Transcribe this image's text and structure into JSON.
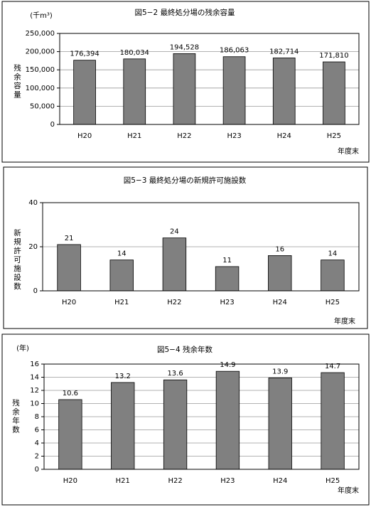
{
  "chart_data": [
    {
      "type": "bar",
      "title": "図5−2 最終処分場の残余容量",
      "unit": "(千m³)",
      "y_label": "残余容量",
      "x_label": "年度末",
      "categories": [
        "H20",
        "H21",
        "H22",
        "H23",
        "H24",
        "H25"
      ],
      "values": [
        176394,
        180034,
        194528,
        186063,
        182714,
        171810
      ],
      "value_labels": [
        "176,394",
        "180,034",
        "194,528",
        "186,063",
        "182,714",
        "171,810"
      ],
      "color": "#808080",
      "ylim": [
        0,
        250000
      ],
      "yticks": [
        0,
        {
          "value": 50000,
          "label": "50,000"
        },
        {
          "value": 100000,
          "label": "100,000"
        },
        {
          "value": 150000,
          "label": "150,000"
        },
        {
          "value": 200000,
          "label": "200,000"
        },
        {
          "value": 250000,
          "label": "250,000"
        }
      ],
      "grid": true
    },
    {
      "type": "bar",
      "title": "図5−3 最終処分場の新規許可施設数",
      "y_label": "新規許可施設数",
      "x_label": "年度末",
      "categories": [
        "H20",
        "H21",
        "H22",
        "H23",
        "H24",
        "H25"
      ],
      "values": [
        21,
        14,
        24,
        11,
        16,
        14
      ],
      "color": "#808080",
      "ylim": [
        0,
        40
      ],
      "yticks": [
        0,
        20,
        40
      ],
      "grid": true
    },
    {
      "type": "bar",
      "title": "図5−4 残余年数",
      "unit": "(年)",
      "y_label": "残余年数",
      "x_label": "年度末",
      "categories": [
        "H20",
        "H21",
        "H22",
        "H23",
        "H24",
        "H25"
      ],
      "values": [
        10.6,
        13.2,
        13.6,
        14.9,
        13.9,
        14.7
      ],
      "color": "#808080",
      "ylim": [
        0,
        16
      ],
      "yticks": [
        0,
        2,
        4,
        6,
        8,
        10,
        12,
        14,
        16
      ],
      "grid": true
    }
  ]
}
